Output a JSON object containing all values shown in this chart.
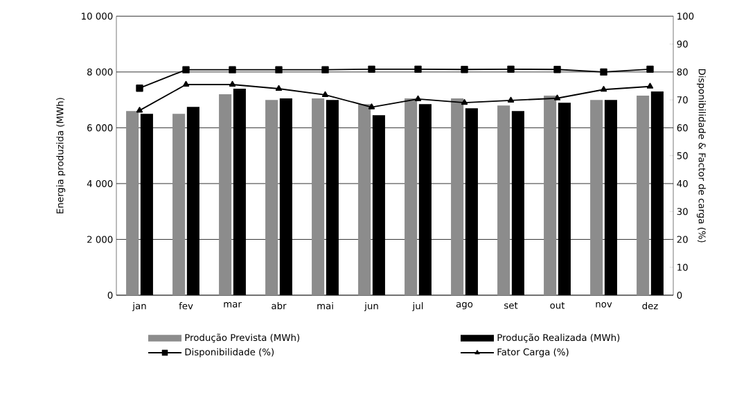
{
  "chart_data": {
    "type": "bar",
    "categories": [
      "jan",
      "fev",
      "mar",
      "abr",
      "mai",
      "jun",
      "jul",
      "ago",
      "set",
      "out",
      "nov",
      "dez"
    ],
    "ylabel": "Energia produzida  (MWh)",
    "y2label": "Disponibilidade & Factor de carga (%)",
    "ylim": [
      0,
      10000
    ],
    "yticks": [
      0,
      {
        "value": 2000,
        "label": "2 000"
      },
      {
        "value": 4000,
        "label": "4 000"
      },
      {
        "value": 6000,
        "label": "6 000"
      },
      {
        "value": 8000,
        "label": "8 000"
      },
      {
        "value": 10000,
        "label": "10 000"
      }
    ],
    "y2lim": [
      0,
      100
    ],
    "y2ticks": [
      0,
      10,
      20,
      30,
      40,
      50,
      60,
      70,
      80,
      90,
      100
    ],
    "grid": "y",
    "legend": "bottom",
    "series": [
      {
        "name": "Produção Prevista (MWh)",
        "color": "#8c8c8c",
        "values": [
          6600,
          6500,
          7200,
          7000,
          7050,
          6850,
          7050,
          7050,
          6800,
          7150,
          7000,
          7150
        ]
      },
      {
        "name": "Produção Realizada (MWh)",
        "color": "#000000",
        "values": [
          6500,
          6750,
          7400,
          7050,
          7000,
          6450,
          6850,
          6700,
          6600,
          6900,
          7000,
          7300
        ]
      },
      {
        "name": "Disponibilidade (%)",
        "type": "line",
        "axis": "y2",
        "marker": "square",
        "color": "#000000",
        "values": [
          74.2,
          80.8,
          80.8,
          80.8,
          80.8,
          81.0,
          81.0,
          80.9,
          81.0,
          80.9,
          80.0,
          81.0
        ]
      },
      {
        "name": "Fator Carga (%)",
        "type": "line",
        "axis": "y2",
        "marker": "triangle",
        "color": "#000000",
        "values": [
          66.2,
          75.5,
          75.5,
          74.0,
          71.8,
          67.4,
          70.3,
          69.0,
          69.8,
          70.6,
          73.7,
          74.8
        ]
      }
    ]
  }
}
